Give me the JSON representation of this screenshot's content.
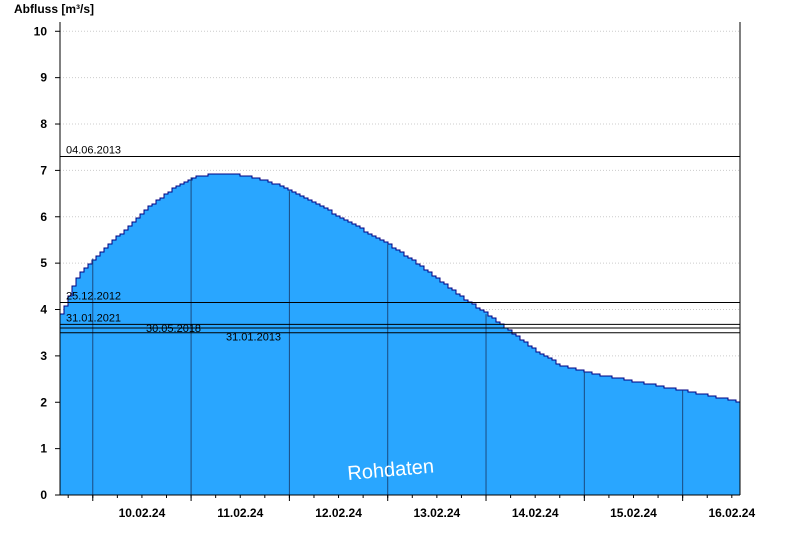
{
  "chart_data": {
    "type": "area",
    "ylabel": "Abfluss [m³/s]",
    "ylim": [
      0,
      10.2
    ],
    "yticks": [
      0,
      1,
      2,
      3,
      4,
      5,
      6,
      7,
      8,
      9,
      10
    ],
    "xlim": [
      "2024-02-09T16:00",
      "2024-02-16T14:00"
    ],
    "xtick_labels": [
      "10.02.24",
      "11.02.24",
      "12.02.24",
      "13.02.24",
      "14.02.24",
      "15.02.24",
      "16.02.24"
    ],
    "grid": "horizontal dotted, vertical day separators",
    "fill_color": "#29A6FF",
    "line_color": "#000080",
    "series": [
      {
        "x": [
          "2024-02-09T16:00",
          "2024-02-09T18:00",
          "2024-02-09T20:00",
          "2024-02-10T00:00",
          "2024-02-10T04:00",
          "2024-02-10T08:00",
          "2024-02-10T12:00",
          "2024-02-10T16:00",
          "2024-02-10T20:00",
          "2024-02-11T00:00",
          "2024-02-11T04:00",
          "2024-02-11T08:00",
          "2024-02-11T12:00",
          "2024-02-11T16:00",
          "2024-02-11T20:00",
          "2024-02-12T00:00",
          "2024-02-12T06:00",
          "2024-02-12T12:00",
          "2024-02-12T18:00",
          "2024-02-13T00:00",
          "2024-02-13T06:00",
          "2024-02-13T12:00",
          "2024-02-13T18:00",
          "2024-02-14T00:00",
          "2024-02-14T06:00",
          "2024-02-14T12:00",
          "2024-02-14T18:00",
          "2024-02-15T00:00",
          "2024-02-15T06:00",
          "2024-02-15T12:00",
          "2024-02-15T18:00",
          "2024-02-16T00:00",
          "2024-02-16T06:00",
          "2024-02-16T14:00"
        ],
        "values": [
          3.9,
          4.3,
          4.7,
          5.1,
          5.45,
          5.75,
          6.1,
          6.4,
          6.65,
          6.85,
          6.9,
          6.92,
          6.9,
          6.82,
          6.72,
          6.55,
          6.3,
          6.0,
          5.7,
          5.4,
          5.05,
          4.65,
          4.25,
          3.9,
          3.5,
          3.1,
          2.8,
          2.65,
          2.55,
          2.45,
          2.35,
          2.25,
          2.15,
          2.0
        ]
      }
    ],
    "reference_lines": [
      {
        "label": "04.06.2013",
        "value": 7.3
      },
      {
        "label": "25.12.2012",
        "value": 4.15
      },
      {
        "label": "31.01.2021",
        "value": 3.68
      },
      {
        "label": "30.05.2018",
        "value": 3.6
      },
      {
        "label": "31.01.2013",
        "value": 3.5
      }
    ],
    "annotation": "Rohdaten"
  }
}
